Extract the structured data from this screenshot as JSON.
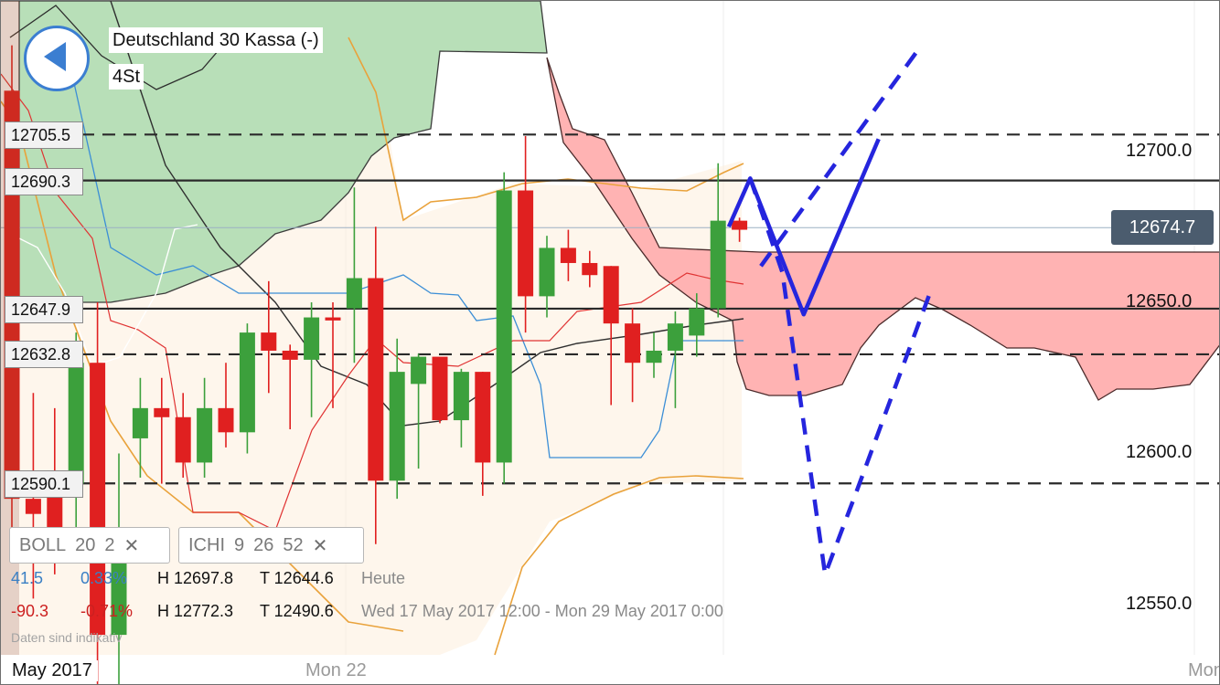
{
  "header": {
    "instrument": "Deutschland 30 Kassa (-)",
    "timeframe": "4St"
  },
  "icons": {
    "back": "back-arrow-icon",
    "remove": "close-icon"
  },
  "level_labels": [
    "12705.5",
    "12690.3",
    "12647.9",
    "12632.8",
    "12590.1"
  ],
  "price_axis": {
    "labels": [
      "12700.0",
      "12650.0",
      "12600.0",
      "12550.0"
    ],
    "current": "12674.7"
  },
  "indicators": {
    "boll": {
      "name": "BOLL",
      "p1": "20",
      "p2": "2"
    },
    "ichi": {
      "name": "ICHI",
      "p1": "9",
      "p2": "26",
      "p3": "52"
    }
  },
  "stats": {
    "today": {
      "change": "41.5",
      "pct": "0.33%",
      "high": "H 12697.8",
      "low": "T 12644.6",
      "period": "Heute"
    },
    "range": {
      "change": "-90.3",
      "pct": "-0.71%",
      "high": "H 12772.3",
      "low": "T 12490.6",
      "period": "Wed 17 May 2017 12:00 - Mon 29 May 2017 0:00"
    }
  },
  "note": "Daten sind indikativ",
  "time_axis": {
    "month": "May 2017",
    "labels": [
      "Mon 22",
      "Mon"
    ]
  },
  "colors": {
    "up": "#3ca03c",
    "down": "#e02020",
    "cloud_bull": "#b8dfb8",
    "cloud_bear": "#ffb3b3",
    "boll": "#e9a23b",
    "forecast": "#2525dd",
    "price_box": "#4b5c6e",
    "back_button": "#3b7ed1"
  },
  "chart_data": {
    "type": "candlestick",
    "instrument": "Deutschland 30 Kassa (-)",
    "timeframe": "4St",
    "yaxis": {
      "ticks": [
        12700.0,
        12650.0,
        12600.0,
        12550.0
      ],
      "range": [
        12530,
        12750
      ]
    },
    "current_price": 12674.7,
    "horizontal_lines": [
      {
        "value": 12705.5,
        "style": "dashed"
      },
      {
        "value": 12690.3,
        "style": "solid"
      },
      {
        "value": 12647.9,
        "style": "solid"
      },
      {
        "value": 12632.8,
        "style": "dashed"
      },
      {
        "value": 12590.1,
        "style": "dashed"
      }
    ],
    "candles": [
      {
        "o": 12720,
        "h": 12735,
        "l": 12570,
        "c": 12585
      },
      {
        "o": 12585,
        "h": 12620,
        "l": 12552,
        "c": 12580
      },
      {
        "o": 12590,
        "h": 12615,
        "l": 12560,
        "c": 12570
      },
      {
        "o": 12590,
        "h": 12640,
        "l": 12570,
        "c": 12630
      },
      {
        "o": 12630,
        "h": 12650,
        "l": 12500,
        "c": 12540
      },
      {
        "o": 12540,
        "h": 12600,
        "l": 12500,
        "c": 12575
      },
      {
        "o": 12605,
        "h": 12625,
        "l": 12592,
        "c": 12615
      },
      {
        "o": 12615,
        "h": 12625,
        "l": 12590,
        "c": 12612
      },
      {
        "o": 12612,
        "h": 12620,
        "l": 12592,
        "c": 12597
      },
      {
        "o": 12597,
        "h": 12625,
        "l": 12592,
        "c": 12615
      },
      {
        "o": 12615,
        "h": 12630,
        "l": 12602,
        "c": 12607
      },
      {
        "o": 12607,
        "h": 12643,
        "l": 12600,
        "c": 12640
      },
      {
        "o": 12640,
        "h": 12657,
        "l": 12620,
        "c": 12634
      },
      {
        "o": 12634,
        "h": 12636,
        "l": 12608,
        "c": 12631
      },
      {
        "o": 12631,
        "h": 12650,
        "l": 12612,
        "c": 12645
      },
      {
        "o": 12645,
        "h": 12650,
        "l": 12615,
        "c": 12644
      },
      {
        "o": 12648,
        "h": 12688,
        "l": 12630,
        "c": 12658
      },
      {
        "o": 12658,
        "h": 12675,
        "l": 12570,
        "c": 12591
      },
      {
        "o": 12591,
        "h": 12638,
        "l": 12585,
        "c": 12627
      },
      {
        "o": 12623,
        "h": 12633,
        "l": 12595,
        "c": 12632
      },
      {
        "o": 12632,
        "h": 12630,
        "l": 12610,
        "c": 12611
      },
      {
        "o": 12611,
        "h": 12628,
        "l": 12602,
        "c": 12627
      },
      {
        "o": 12627,
        "h": 12627,
        "l": 12586,
        "c": 12597
      },
      {
        "o": 12597,
        "h": 12693,
        "l": 12590,
        "c": 12687
      },
      {
        "o": 12687,
        "h": 12705,
        "l": 12640,
        "c": 12652
      },
      {
        "o": 12652,
        "h": 12672,
        "l": 12645,
        "c": 12668
      },
      {
        "o": 12668,
        "h": 12674,
        "l": 12657,
        "c": 12663
      },
      {
        "o": 12663,
        "h": 12667,
        "l": 12655,
        "c": 12659
      },
      {
        "o": 12662,
        "h": 12662,
        "l": 12616,
        "c": 12643
      },
      {
        "o": 12643,
        "h": 12648,
        "l": 12617,
        "c": 12630
      },
      {
        "o": 12630,
        "h": 12640,
        "l": 12625,
        "c": 12634
      },
      {
        "o": 12634,
        "h": 12647,
        "l": 12615,
        "c": 12643
      },
      {
        "o": 12639,
        "h": 12653,
        "l": 12632,
        "c": 12648
      },
      {
        "o": 12648,
        "h": 12696,
        "l": 12645,
        "c": 12677
      },
      {
        "o": 12677,
        "h": 12678,
        "l": 12670,
        "c": 12674
      }
    ],
    "forecast": [
      {
        "points": [
          [
            33.5,
            12675
          ],
          [
            34.5,
            12691
          ],
          [
            37,
            12646
          ],
          [
            40.5,
            12704
          ]
        ],
        "style": "solid"
      },
      {
        "points": [
          [
            34.5,
            12691
          ],
          [
            36,
            12660
          ],
          [
            38,
            12560
          ],
          [
            39.5,
            12588
          ],
          [
            43,
            12655
          ]
        ],
        "style": "dashed"
      },
      {
        "points": [
          [
            35,
            12662
          ],
          [
            42.5,
            12735
          ]
        ],
        "style": "dashed"
      }
    ]
  }
}
